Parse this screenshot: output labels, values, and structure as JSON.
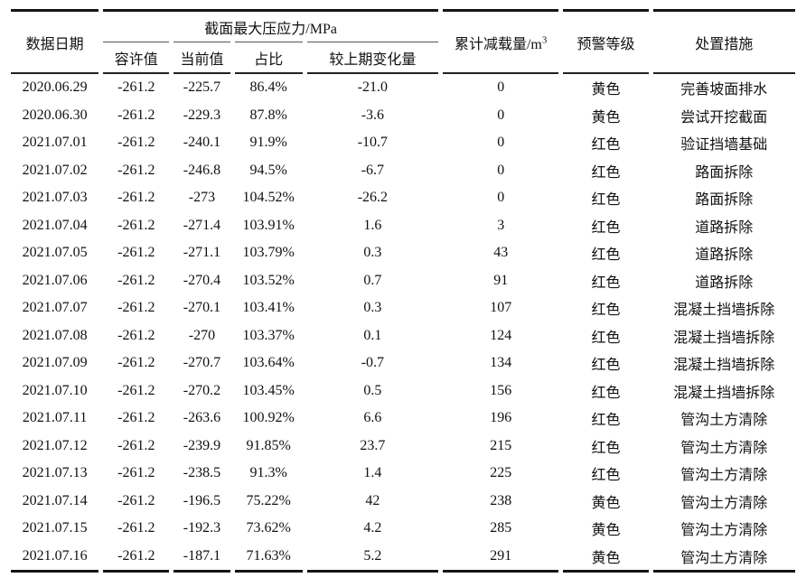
{
  "table": {
    "columns": {
      "date": "数据日期",
      "stress_group": "截面最大压应力/MPa",
      "allowable": "容许值",
      "current": "当前值",
      "ratio": "占比",
      "change": "较上期变化量",
      "unload_base": "累计减载量/m",
      "unload_sup": "3",
      "warning": "预警等级",
      "action": "处置措施"
    },
    "rows": [
      [
        "2020.06.29",
        "-261.2",
        "-225.7",
        "86.4%",
        "-21.0",
        "0",
        "黄色",
        "完善坡面排水"
      ],
      [
        "2020.06.30",
        "-261.2",
        "-229.3",
        "87.8%",
        "-3.6",
        "0",
        "黄色",
        "尝试开挖截面"
      ],
      [
        "2021.07.01",
        "-261.2",
        "-240.1",
        "91.9%",
        "-10.7",
        "0",
        "红色",
        "验证挡墙基础"
      ],
      [
        "2021.07.02",
        "-261.2",
        "-246.8",
        "94.5%",
        "-6.7",
        "0",
        "红色",
        "路面拆除"
      ],
      [
        "2021.07.03",
        "-261.2",
        "-273",
        "104.52%",
        "-26.2",
        "0",
        "红色",
        "路面拆除"
      ],
      [
        "2021.07.04",
        "-261.2",
        "-271.4",
        "103.91%",
        "1.6",
        "3",
        "红色",
        "道路拆除"
      ],
      [
        "2021.07.05",
        "-261.2",
        "-271.1",
        "103.79%",
        "0.3",
        "43",
        "红色",
        "道路拆除"
      ],
      [
        "2021.07.06",
        "-261.2",
        "-270.4",
        "103.52%",
        "0.7",
        "91",
        "红色",
        "道路拆除"
      ],
      [
        "2021.07.07",
        "-261.2",
        "-270.1",
        "103.41%",
        "0.3",
        "107",
        "红色",
        "混凝土挡墙拆除"
      ],
      [
        "2021.07.08",
        "-261.2",
        "-270",
        "103.37%",
        "0.1",
        "124",
        "红色",
        "混凝土挡墙拆除"
      ],
      [
        "2021.07.09",
        "-261.2",
        "-270.7",
        "103.64%",
        "-0.7",
        "134",
        "红色",
        "混凝土挡墙拆除"
      ],
      [
        "2021.07.10",
        "-261.2",
        "-270.2",
        "103.45%",
        "0.5",
        "156",
        "红色",
        "混凝土挡墙拆除"
      ],
      [
        "2021.07.11",
        "-261.2",
        "-263.6",
        "100.92%",
        "6.6",
        "196",
        "红色",
        "管沟土方清除"
      ],
      [
        "2021.07.12",
        "-261.2",
        "-239.9",
        "91.85%",
        "23.7",
        "215",
        "红色",
        "管沟土方清除"
      ],
      [
        "2021.07.13",
        "-261.2",
        "-238.5",
        "91.3%",
        "1.4",
        "225",
        "红色",
        "管沟土方清除"
      ],
      [
        "2021.07.14",
        "-261.2",
        "-196.5",
        "75.22%",
        "42",
        "238",
        "黄色",
        "管沟土方清除"
      ],
      [
        "2021.07.15",
        "-261.2",
        "-192.3",
        "73.62%",
        "4.2",
        "285",
        "黄色",
        "管沟土方清除"
      ],
      [
        "2021.07.16",
        "-261.2",
        "-187.1",
        "71.63%",
        "5.2",
        "291",
        "黄色",
        "管沟土方清除"
      ]
    ]
  }
}
